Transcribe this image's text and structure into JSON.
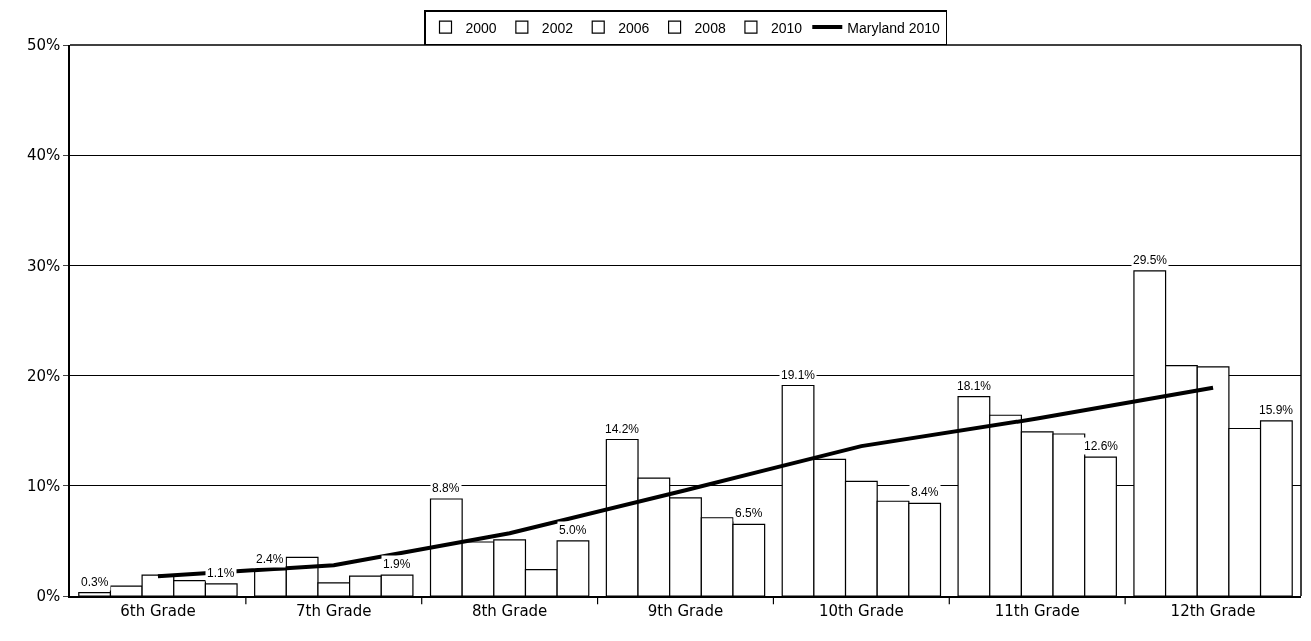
{
  "chart_data": {
    "type": "bar",
    "categories": [
      "6th Grade",
      "7th Grade",
      "8th Grade",
      "9th Grade",
      "10th Grade",
      "11th Grade",
      "12th Grade"
    ],
    "series": [
      {
        "name": "2000",
        "color": "#ffffff",
        "values": [
          0.3,
          2.4,
          8.8,
          14.2,
          19.1,
          18.1,
          29.5
        ],
        "value_labels": [
          "0.3%",
          "2.4%",
          "8.8%",
          "14.2%",
          "19.1%",
          "18.1%",
          "29.5%"
        ]
      },
      {
        "name": "2002",
        "color": "#ffffff",
        "values": [
          0.9,
          3.5,
          4.9,
          10.7,
          12.4,
          16.4,
          20.9
        ]
      },
      {
        "name": "2006",
        "color": "#ffffff",
        "values": [
          1.9,
          1.2,
          5.1,
          8.9,
          10.4,
          14.9,
          20.8
        ]
      },
      {
        "name": "2008",
        "color": "#ffffff",
        "values": [
          1.4,
          1.8,
          2.4,
          7.1,
          8.6,
          14.7,
          15.2
        ]
      },
      {
        "name": "2010",
        "color": "#ffffff",
        "values": [
          1.1,
          1.9,
          5.0,
          6.5,
          8.4,
          12.6,
          15.9
        ],
        "value_labels": [
          "1.1%",
          "1.9%",
          "5.0%",
          "6.5%",
          "8.4%",
          "12.6%",
          "15.9%"
        ]
      },
      {
        "name": "Maryland 2010",
        "type": "line",
        "color": "#000000",
        "values": [
          1.8,
          2.8,
          5.7,
          9.6,
          13.6,
          16.1,
          18.9
        ]
      }
    ],
    "ylim": [
      0,
      50
    ],
    "yticks": [
      {
        "value": 0,
        "label": "0%"
      },
      {
        "value": 10,
        "label": "10%"
      },
      {
        "value": 20,
        "label": "20%"
      },
      {
        "value": 30,
        "label": "30%"
      },
      {
        "value": 40,
        "label": "40%"
      },
      {
        "value": 50,
        "label": "50%"
      }
    ],
    "grid": "y",
    "legend": "top",
    "marker": "none",
    "line_style": "solid"
  }
}
